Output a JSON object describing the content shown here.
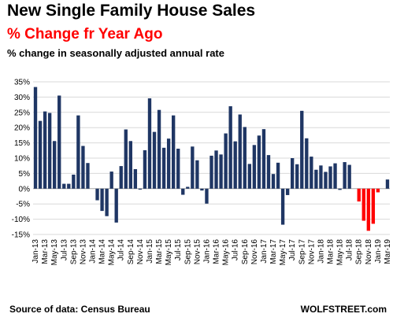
{
  "chart_data": {
    "type": "bar",
    "title": "New Single Family House Sales",
    "subtitle": "% Change fr Year Ago",
    "description": "% change in seasonally adjusted annual rate",
    "source": "Source of data: Census Bureau",
    "brand": "WOLFSTREET.com",
    "ylim": [
      -15,
      35
    ],
    "yticks": [
      -15,
      -10,
      -5,
      0,
      5,
      10,
      15,
      20,
      25,
      30,
      35
    ],
    "ytick_labels": [
      "-15%",
      "-10%",
      "-5%",
      "0%",
      "5%",
      "10%",
      "15%",
      "20%",
      "25%",
      "30%",
      "35%"
    ],
    "grid": true,
    "start_month": "Jan-13",
    "xtick_labels": [
      "Jan-13",
      "Mar-13",
      "May-13",
      "Jul-13",
      "Sep-13",
      "Nov-13",
      "Jan-14",
      "Mar-14",
      "May-14",
      "Jul-14",
      "Sep-14",
      "Nov-14",
      "Jan-15",
      "Mar-15",
      "May-15",
      "Jul-15",
      "Sep-15",
      "Nov-15",
      "Jan-16",
      "Mar-16",
      "May-16",
      "Jul-16",
      "Sep-16",
      "Nov-16",
      "Jan-17",
      "Mar-17",
      "May-17",
      "Jul-17",
      "Sep-17",
      "Nov-17",
      "Jan-18",
      "Mar-18",
      "May-18",
      "Jul-18",
      "Sep-18",
      "Nov-18",
      "Jan-19",
      "Mar-19"
    ],
    "values": [
      33.3,
      22.2,
      25.3,
      24.8,
      15.6,
      30.5,
      1.6,
      1.6,
      4.6,
      24.0,
      14.0,
      8.4,
      0.0,
      -3.8,
      -7.3,
      -9.0,
      5.6,
      -11.1,
      7.4,
      19.4,
      15.6,
      6.4,
      -0.3,
      12.6,
      29.6,
      18.6,
      25.8,
      13.4,
      16.4,
      24.0,
      13.1,
      -2.0,
      0.6,
      13.8,
      9.3,
      -0.6,
      -4.9,
      10.8,
      12.5,
      11.2,
      18.1,
      27.0,
      15.5,
      24.3,
      20.2,
      8.1,
      14.3,
      17.4,
      19.5,
      11.0,
      4.8,
      8.5,
      -11.8,
      -2.1,
      10.0,
      8.0,
      25.5,
      16.5,
      10.5,
      6.2,
      7.6,
      5.5,
      7.3,
      8.3,
      -0.4,
      8.7,
      7.8,
      0.0,
      -4.2,
      -10.5,
      -13.8,
      -11.5,
      -1.2,
      0.0,
      3.0
    ],
    "negative_highlight_from": "Aug-18",
    "colors": {
      "bar": "#1f3664",
      "highlight": "#ff0000",
      "grid": "#d9d9d9",
      "axis": "#a6a6a6"
    }
  }
}
